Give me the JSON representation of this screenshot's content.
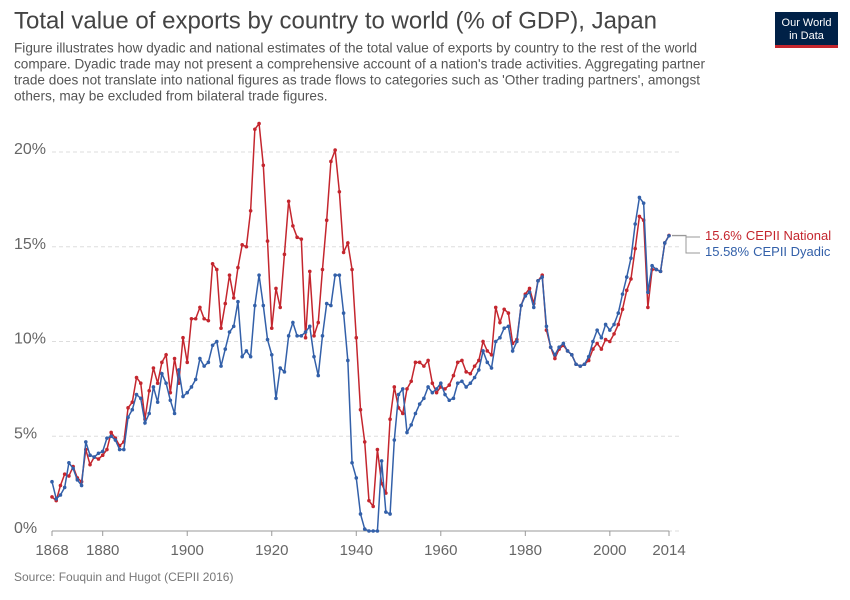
{
  "chart_data": {
    "type": "line",
    "title": "Total value of exports by country to world (% of GDP), Japan",
    "subtitle": [
      "Figure illustrates how dyadic and national estimates of the total value of exports by country to the rest of the world",
      "compare. Dyadic trade may not present a comprehensive account of a nation's trade activities. Aggregating partner",
      "trade does not translate into national figures as trade flows to categories such as 'Other trading partners', amongst",
      "others, may be excluded from bilateral trade figures."
    ],
    "source": "Source: Fouquin and Hugot (CEPII 2016)",
    "logo": [
      "Our World",
      "in Data"
    ],
    "x": [
      1868,
      1869,
      1870,
      1871,
      1872,
      1873,
      1874,
      1875,
      1876,
      1877,
      1878,
      1879,
      1880,
      1881,
      1882,
      1883,
      1884,
      1885,
      1886,
      1887,
      1888,
      1889,
      1890,
      1891,
      1892,
      1893,
      1894,
      1895,
      1896,
      1897,
      1898,
      1899,
      1900,
      1901,
      1902,
      1903,
      1904,
      1905,
      1906,
      1907,
      1908,
      1909,
      1910,
      1911,
      1912,
      1913,
      1914,
      1915,
      1916,
      1917,
      1918,
      1919,
      1920,
      1921,
      1922,
      1923,
      1924,
      1925,
      1926,
      1927,
      1928,
      1929,
      1930,
      1931,
      1932,
      1933,
      1934,
      1935,
      1936,
      1937,
      1938,
      1939,
      1940,
      1941,
      1942,
      1943,
      1944,
      1945,
      1946,
      1947,
      1948,
      1949,
      1950,
      1951,
      1952,
      1953,
      1954,
      1955,
      1956,
      1957,
      1958,
      1959,
      1960,
      1961,
      1962,
      1963,
      1964,
      1965,
      1966,
      1967,
      1968,
      1969,
      1970,
      1971,
      1972,
      1973,
      1974,
      1975,
      1976,
      1977,
      1978,
      1979,
      1980,
      1981,
      1982,
      1983,
      1984,
      1985,
      1986,
      1987,
      1988,
      1989,
      1990,
      1991,
      1992,
      1993,
      1994,
      1995,
      1996,
      1997,
      1998,
      1999,
      2000,
      2001,
      2002,
      2003,
      2004,
      2005,
      2006,
      2007,
      2008,
      2009,
      2010,
      2011,
      2012,
      2013,
      2014
    ],
    "series": [
      {
        "name": "CEPII National",
        "end_label": "15.6%",
        "color": "#c4262e",
        "values": [
          1.8,
          1.6,
          2.4,
          3.0,
          2.9,
          3.4,
          2.8,
          2.6,
          4.3,
          3.5,
          3.9,
          3.8,
          4.0,
          4.3,
          5.2,
          4.9,
          4.5,
          4.7,
          6.5,
          6.8,
          8.1,
          7.8,
          5.9,
          7.4,
          8.6,
          7.8,
          8.9,
          9.3,
          7.3,
          9.1,
          7.8,
          10.2,
          8.9,
          11.2,
          11.2,
          11.8,
          11.2,
          11.1,
          14.1,
          13.8,
          10.7,
          12.0,
          13.5,
          12.3,
          13.9,
          15.1,
          15.0,
          16.9,
          21.2,
          21.5,
          19.3,
          15.3,
          10.7,
          12.8,
          11.8,
          14.6,
          17.4,
          16.1,
          15.5,
          15.4,
          10.2,
          13.7,
          10.3,
          11.0,
          13.8,
          16.4,
          19.5,
          20.1,
          17.9,
          14.7,
          15.2,
          13.8,
          10.2,
          6.4,
          4.7,
          1.6,
          1.3,
          4.3,
          2.5,
          2.0,
          5.9,
          7.6,
          6.5,
          6.2,
          7.5,
          7.9,
          8.9,
          8.9,
          8.7,
          9.0,
          7.8,
          7.3,
          7.6,
          7.5,
          7.7,
          8.2,
          8.9,
          9.0,
          8.4,
          8.3,
          8.7,
          9.0,
          10.0,
          9.5,
          9.3,
          11.8,
          11.0,
          11.7,
          11.5,
          9.9,
          10.1,
          11.9,
          12.5,
          12.8,
          12.0,
          13.2,
          13.5,
          10.6,
          9.7,
          9.1,
          9.6,
          9.8,
          9.5,
          9.3,
          8.8,
          8.7,
          8.8,
          9.0,
          9.6,
          9.9,
          9.6,
          10.1,
          10.0,
          10.4,
          10.9,
          11.7,
          12.7,
          13.3,
          14.9,
          16.6,
          16.4,
          11.8,
          13.8,
          13.8,
          13.7,
          15.2,
          15.6
        ]
      },
      {
        "name": "CEPII Dyadic",
        "end_label": "15.58%",
        "color": "#3360a9",
        "values": [
          2.6,
          1.7,
          1.9,
          2.3,
          3.6,
          3.3,
          2.7,
          2.4,
          4.7,
          4.0,
          3.9,
          4.1,
          4.2,
          4.9,
          5.0,
          4.8,
          4.3,
          4.3,
          6.0,
          6.4,
          7.2,
          7.0,
          5.7,
          6.2,
          7.6,
          6.8,
          8.3,
          7.8,
          6.9,
          6.2,
          8.5,
          7.1,
          7.3,
          7.6,
          8.0,
          9.1,
          8.7,
          8.9,
          9.8,
          10.0,
          8.7,
          9.6,
          10.5,
          10.8,
          12.1,
          9.2,
          9.5,
          9.2,
          11.9,
          13.5,
          11.9,
          10.1,
          9.3,
          7.0,
          8.6,
          8.4,
          10.3,
          11.0,
          10.3,
          10.3,
          10.5,
          10.8,
          9.2,
          8.2,
          10.3,
          12.0,
          11.9,
          13.5,
          13.5,
          11.5,
          9.0,
          3.6,
          2.8,
          0.9,
          0.1,
          0.0,
          0.0,
          0.0,
          3.7,
          1.0,
          0.9,
          4.8,
          7.2,
          7.5,
          5.2,
          5.6,
          6.2,
          6.7,
          7.0,
          7.6,
          7.3,
          7.5,
          7.8,
          7.2,
          6.9,
          7.0,
          7.8,
          7.9,
          7.6,
          7.8,
          8.1,
          8.5,
          9.5,
          8.9,
          8.6,
          10.0,
          10.2,
          10.7,
          10.8,
          9.5,
          10.0,
          11.9,
          12.4,
          12.6,
          11.8,
          13.2,
          13.4,
          10.8,
          9.7,
          9.3,
          9.7,
          9.9,
          9.5,
          9.3,
          8.8,
          8.7,
          8.8,
          9.2,
          10.0,
          10.6,
          10.2,
          10.9,
          10.6,
          10.9,
          11.5,
          12.5,
          13.4,
          14.4,
          16.2,
          17.6,
          17.3,
          12.6,
          14.0,
          13.8,
          13.7,
          15.2,
          15.58
        ]
      }
    ],
    "xlim": [
      1868,
      2014
    ],
    "xticks": [
      1868,
      1880,
      1900,
      1920,
      1940,
      1960,
      1980,
      2000,
      2014
    ],
    "ylim": [
      0,
      20
    ],
    "yticks": [
      {
        "value": 0,
        "label": "0%"
      },
      {
        "value": 5,
        "label": "5%"
      },
      {
        "value": 10,
        "label": "10%"
      },
      {
        "value": 15,
        "label": "15%"
      },
      {
        "value": 20,
        "label": "20%"
      }
    ],
    "grid": true
  }
}
